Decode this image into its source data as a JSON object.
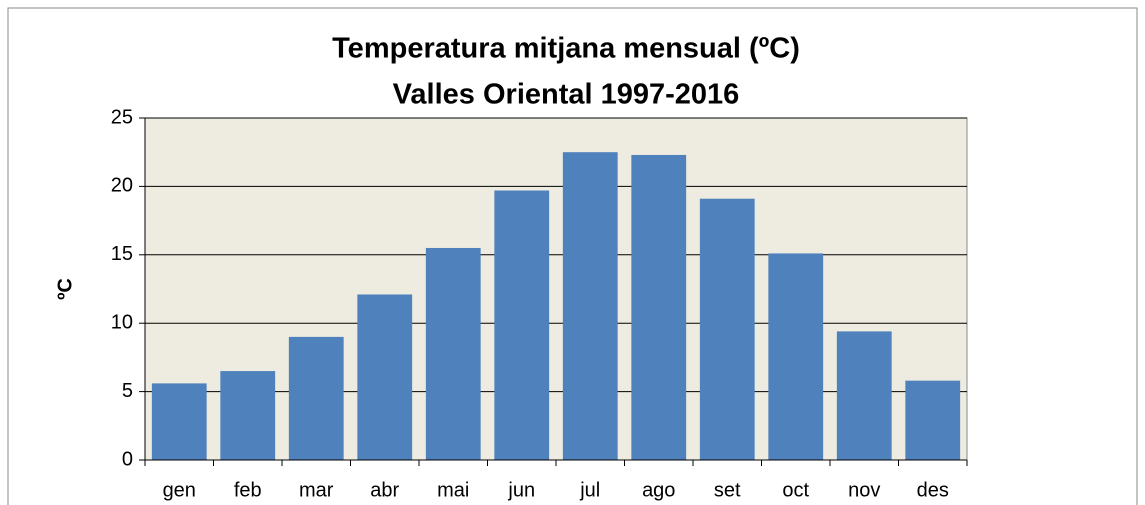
{
  "chart_data": {
    "type": "bar",
    "title": "Temperatura mitjana mensual (ºC)",
    "subtitle": "Valles Oriental 1997-2016",
    "y_label": "ºC",
    "categories": [
      "gen",
      "feb",
      "mar",
      "abr",
      "mai",
      "jun",
      "jul",
      "ago",
      "set",
      "oct",
      "nov",
      "des"
    ],
    "values": [
      5.6,
      6.5,
      9.0,
      12.1,
      15.5,
      19.7,
      22.5,
      22.3,
      19.1,
      15.1,
      9.4,
      5.8
    ],
    "color": "#4f81bd",
    "ylim": [
      0,
      25
    ],
    "yticks": [
      0,
      5,
      10,
      15,
      20,
      25
    ],
    "grid": true
  }
}
